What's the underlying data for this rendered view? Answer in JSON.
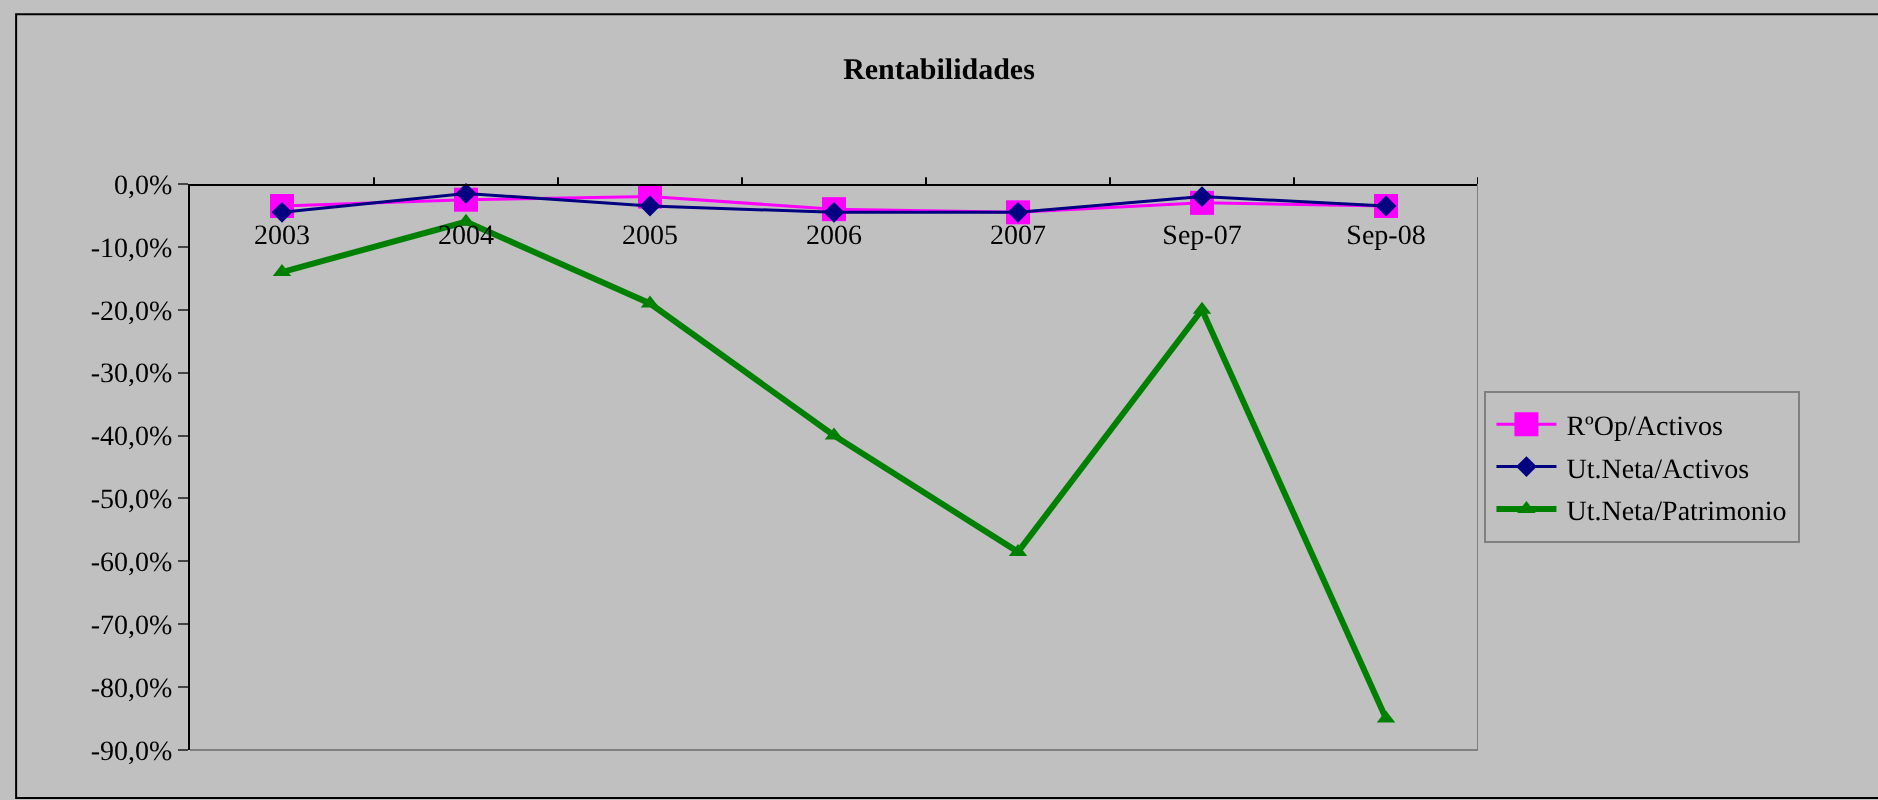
{
  "chart_data": {
    "type": "line",
    "title": "Rentabilidades",
    "categories": [
      "2003",
      "2004",
      "2005",
      "2006",
      "2007",
      "Sep-07",
      "Sep-08"
    ],
    "series": [
      {
        "name": "RºOp/Activos",
        "color": "#ff00ff",
        "marker": "square",
        "values": [
          -3.5,
          -2.5,
          -2,
          -4,
          -4.5,
          -3,
          -3.5
        ]
      },
      {
        "name": "Ut.Neta/Activos",
        "color": "#000080",
        "marker": "diamond",
        "values": [
          -4.5,
          -1.5,
          -3.5,
          -4.5,
          -4.5,
          -2,
          -3.5
        ]
      },
      {
        "name": "Ut.Neta/Patrimonio",
        "color": "#008000",
        "marker": "triangle",
        "values": [
          -14,
          -6,
          -19,
          -40,
          -58.5,
          -20,
          -85
        ]
      }
    ],
    "ylim": [
      -90,
      0
    ],
    "yticks": [
      {
        "value": 0,
        "label": "0,0%"
      },
      {
        "value": -10,
        "label": "-10,0%"
      },
      {
        "value": -20,
        "label": "-20,0%"
      },
      {
        "value": -30,
        "label": "-30,0%"
      },
      {
        "value": -40,
        "label": "-40,0%"
      },
      {
        "value": -50,
        "label": "-50,0%"
      },
      {
        "value": -60,
        "label": "-60,0%"
      },
      {
        "value": -70,
        "label": "-70,0%"
      },
      {
        "value": -80,
        "label": "-80,0%"
      },
      {
        "value": -90,
        "label": "-90,0%"
      }
    ],
    "grid": false,
    "legend": "right",
    "line_style": "solid"
  }
}
